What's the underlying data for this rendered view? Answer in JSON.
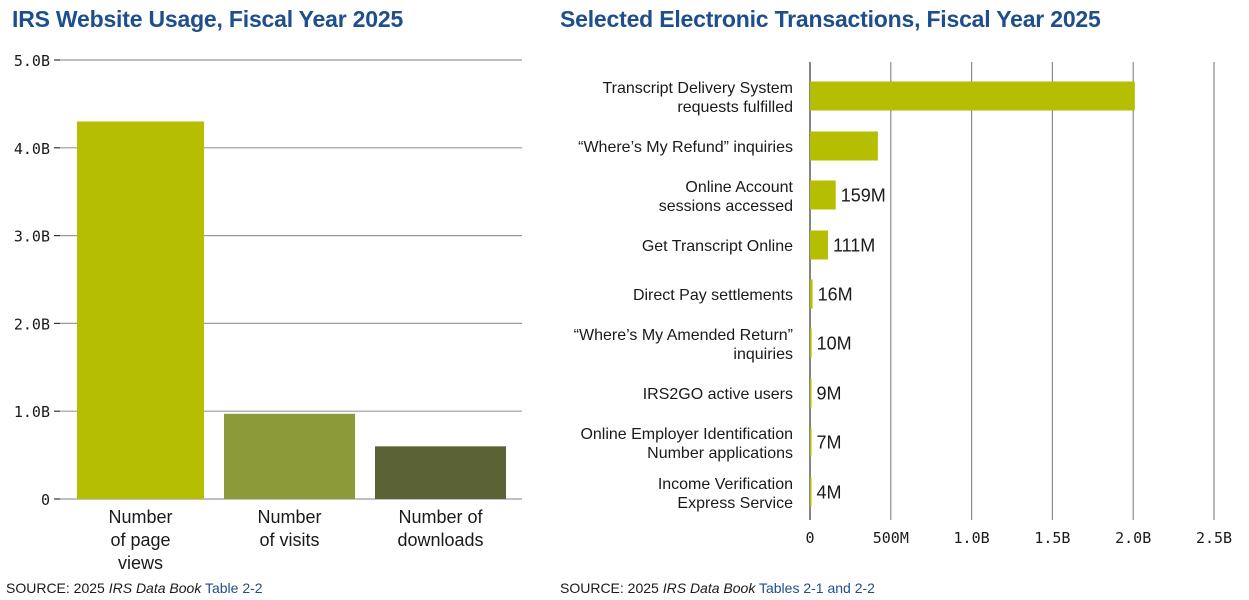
{
  "charts": {
    "website_usage": {
      "title": "IRS Website Usage, Fiscal Year 2025",
      "source": {
        "prefix": "SOURCE: 2025 ",
        "publication": "IRS Data Book",
        "table_link": "Table 2-2"
      }
    },
    "electronic_transactions": {
      "title": "Selected Electronic Transactions, Fiscal Year 2025",
      "source": {
        "prefix": "SOURCE: 2025 ",
        "publication": "IRS Data Book",
        "table_link": "Tables 2-1 and 2-2"
      }
    }
  },
  "chart_data": [
    {
      "type": "bar",
      "orientation": "vertical",
      "title": "IRS Website Usage, Fiscal Year 2025",
      "categories": [
        [
          "Number",
          "of page",
          "views"
        ],
        [
          "Number",
          "of visits"
        ],
        [
          "Number of",
          "downloads"
        ]
      ],
      "values": [
        4300000000,
        970000000,
        600000000
      ],
      "colors": [
        "#b5be00",
        "#8c9a3a",
        "#5b6336"
      ],
      "ylim": [
        0,
        5000000000
      ],
      "yticks": [
        0,
        1000000000,
        2000000000,
        3000000000,
        4000000000,
        5000000000
      ],
      "ytick_labels": [
        "0",
        "1.0B",
        "2.0B",
        "3.0B",
        "4.0B",
        "5.0B"
      ],
      "grid": true
    },
    {
      "type": "bar",
      "orientation": "horizontal",
      "title": "Selected Electronic Transactions, Fiscal Year 2025",
      "categories": [
        [
          "Transcript Delivery System",
          "requests fulfilled"
        ],
        [
          "“Where’s My Refund” inquiries"
        ],
        [
          "Online Account",
          "sessions accessed"
        ],
        [
          "Get Transcript Online"
        ],
        [
          "Direct Pay settlements"
        ],
        [
          "“Where’s My Amended Return”",
          "inquiries"
        ],
        [
          "IRS2GO active users"
        ],
        [
          "Online Employer Identification",
          "Number applications"
        ],
        [
          "Income Verification",
          "Express Service"
        ]
      ],
      "values": [
        2010000000,
        420000000,
        159000000,
        111000000,
        16000000,
        10000000,
        9000000,
        7000000,
        4000000
      ],
      "data_labels": [
        "",
        "",
        "159M",
        "111M",
        "16M",
        "10M",
        "9M",
        "7M",
        "4M"
      ],
      "color": "#b5be00",
      "xlim": [
        0,
        2500000000
      ],
      "xticks": [
        0,
        500000000,
        1000000000,
        1500000000,
        2000000000,
        2500000000
      ],
      "xtick_labels": [
        "0",
        "500M",
        "1.0B",
        "1.5B",
        "2.0B",
        "2.5B"
      ],
      "grid": true
    }
  ]
}
